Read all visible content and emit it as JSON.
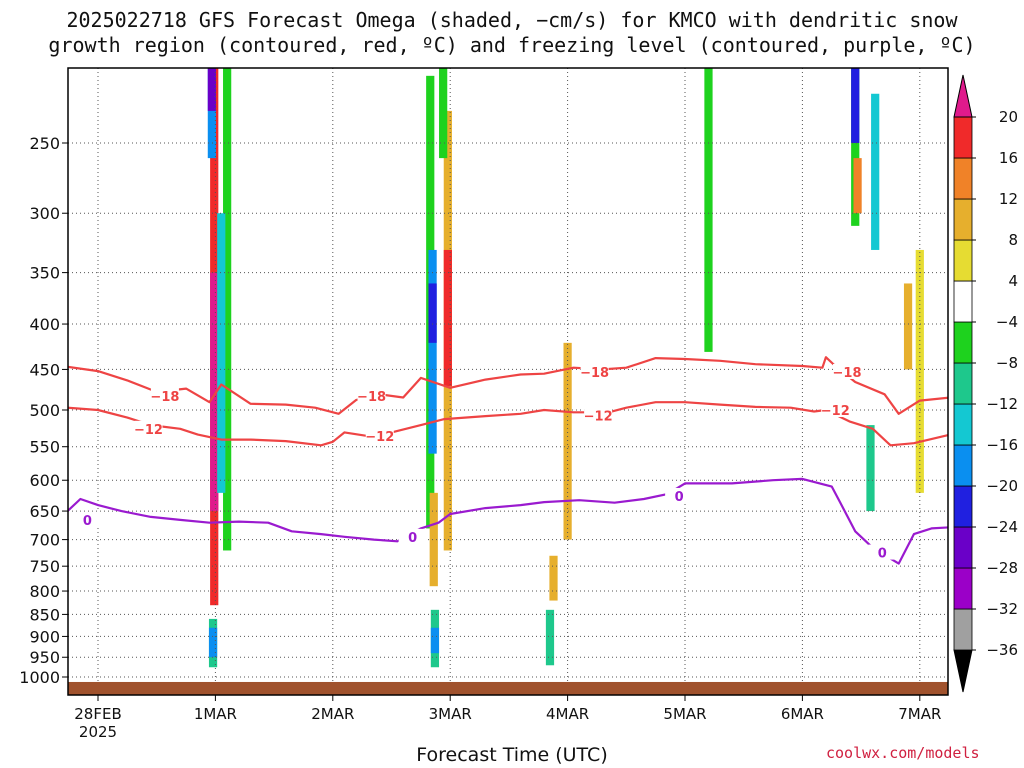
{
  "title_line1": "2025022718 GFS Forecast Omega (shaded, −cm/s) for KMCO with dendritic snow",
  "title_line2": "growth region (contoured, red, ºC) and freezing level (contoured, purple, ºC)",
  "credit": "coolwx.com/models",
  "chart_data": {
    "type": "heatmap",
    "title": "2025022718 GFS Forecast Omega (shaded, −cm/s) for KMCO with dendritic snow growth region (contoured, red, ºC) and freezing level (contoured, purple, ºC)",
    "xlabel": "Forecast Time (UTC)",
    "ylabel": "",
    "x_ticks": [
      {
        "label": "28FEB",
        "sub": "2025",
        "day": 0
      },
      {
        "label": "1MAR",
        "sub": "",
        "day": 1
      },
      {
        "label": "2MAR",
        "sub": "",
        "day": 2
      },
      {
        "label": "3MAR",
        "sub": "",
        "day": 3
      },
      {
        "label": "4MAR",
        "sub": "",
        "day": 4
      },
      {
        "label": "5MAR",
        "sub": "",
        "day": 5
      },
      {
        "label": "6MAR",
        "sub": "",
        "day": 6
      },
      {
        "label": "7MAR",
        "sub": "",
        "day": 7
      }
    ],
    "x_range_days": [
      -0.26,
      7.26
    ],
    "y_axis": "pressure (hPa), reversed",
    "y_ticks": [
      250,
      300,
      350,
      400,
      450,
      500,
      550,
      600,
      650,
      700,
      750,
      800,
      850,
      900,
      950,
      1000
    ],
    "y_range_hpa": [
      200,
      1013
    ],
    "grid": true,
    "colorbar": {
      "levels": [
        -36,
        -32,
        -28,
        -24,
        -20,
        -16,
        -12,
        -8,
        -4,
        4,
        8,
        12,
        16,
        20
      ],
      "labels": [
        "20",
        "16",
        "12",
        "8",
        "4",
        "−4",
        "−8",
        "−12",
        "−16",
        "−20",
        "−24",
        "−28",
        "−32",
        "−36"
      ],
      "colors_bottom_to_top": [
        "#000000",
        "#a0a0a0",
        "#9b00c8",
        "#6a00c8",
        "#2020e0",
        "#0a8ff0",
        "#14c8d2",
        "#1ec88c",
        "#1ed21e",
        "#ffffff",
        "#e6dc32",
        "#e6af2d",
        "#f08228",
        "#f02a2a",
        "#e01a8c"
      ],
      "position": "right"
    },
    "shading_cells": [
      {
        "day": 0.99,
        "p1": 200,
        "p2": 830,
        "value": 17
      },
      {
        "day": 0.99,
        "p1": 350,
        "p2": 650,
        "value": 21
      },
      {
        "day": 1.1,
        "p1": 200,
        "p2": 720,
        "value": -8
      },
      {
        "day": 1.05,
        "p1": 300,
        "p2": 620,
        "value": -14
      },
      {
        "day": 0.97,
        "p1": 200,
        "p2": 260,
        "value": -20
      },
      {
        "day": 0.97,
        "p1": 200,
        "p2": 230,
        "value": -26
      },
      {
        "day": 0.98,
        "p1": 860,
        "p2": 975,
        "value": -10
      },
      {
        "day": 0.98,
        "p1": 880,
        "p2": 950,
        "value": -18
      },
      {
        "day": 2.83,
        "p1": 210,
        "p2": 680,
        "value": -7
      },
      {
        "day": 2.85,
        "p1": 330,
        "p2": 560,
        "value": -18
      },
      {
        "day": 2.85,
        "p1": 360,
        "p2": 420,
        "value": -22
      },
      {
        "day": 2.98,
        "p1": 230,
        "p2": 720,
        "value": 11
      },
      {
        "day": 2.98,
        "p1": 330,
        "p2": 470,
        "value": 17
      },
      {
        "day": 2.94,
        "p1": 200,
        "p2": 260,
        "value": -6
      },
      {
        "day": 2.86,
        "p1": 620,
        "p2": 790,
        "value": 8
      },
      {
        "day": 2.87,
        "p1": 840,
        "p2": 975,
        "value": -10
      },
      {
        "day": 2.87,
        "p1": 880,
        "p2": 940,
        "value": -18
      },
      {
        "day": 4.0,
        "p1": 420,
        "p2": 700,
        "value": 9
      },
      {
        "day": 3.88,
        "p1": 730,
        "p2": 820,
        "value": 10
      },
      {
        "day": 3.85,
        "p1": 840,
        "p2": 970,
        "value": -12
      },
      {
        "day": 5.2,
        "p1": 200,
        "p2": 430,
        "value": -8
      },
      {
        "day": 6.45,
        "p1": 200,
        "p2": 310,
        "value": -8
      },
      {
        "day": 6.45,
        "p1": 200,
        "p2": 250,
        "value": -22
      },
      {
        "day": 6.47,
        "p1": 260,
        "p2": 300,
        "value": 12
      },
      {
        "day": 6.62,
        "p1": 220,
        "p2": 330,
        "value": -14
      },
      {
        "day": 6.58,
        "p1": 520,
        "p2": 650,
        "value": -12
      },
      {
        "day": 7.0,
        "p1": 330,
        "p2": 620,
        "value": 5
      },
      {
        "day": 6.9,
        "p1": 360,
        "p2": 450,
        "value": 9
      }
    ],
    "contours": [
      {
        "name": "-18",
        "color": "#ee4444",
        "labels": [
          {
            "day": 0.57,
            "hpa": 482,
            "text": "−18"
          },
          {
            "day": 2.33,
            "hpa": 482,
            "text": "−18"
          },
          {
            "day": 4.23,
            "hpa": 453,
            "text": "−18"
          },
          {
            "day": 6.38,
            "hpa": 453,
            "text": "−18"
          }
        ],
        "points": [
          [
            -0.26,
            447
          ],
          [
            0,
            452
          ],
          [
            0.25,
            463
          ],
          [
            0.5,
            477
          ],
          [
            0.75,
            473
          ],
          [
            0.95,
            490
          ],
          [
            1.05,
            468
          ],
          [
            1.3,
            492
          ],
          [
            1.6,
            493
          ],
          [
            1.85,
            497
          ],
          [
            2.05,
            505
          ],
          [
            2.2,
            487
          ],
          [
            2.4,
            480
          ],
          [
            2.6,
            484
          ],
          [
            2.75,
            460
          ],
          [
            3.0,
            472
          ],
          [
            3.3,
            462
          ],
          [
            3.6,
            456
          ],
          [
            3.8,
            455
          ],
          [
            4.05,
            448
          ],
          [
            4.3,
            450
          ],
          [
            4.5,
            448
          ],
          [
            4.75,
            437
          ],
          [
            5.0,
            438
          ],
          [
            5.3,
            440
          ],
          [
            5.6,
            444
          ],
          [
            6.0,
            446
          ],
          [
            6.17,
            448
          ],
          [
            6.2,
            436
          ],
          [
            6.28,
            446
          ],
          [
            6.45,
            465
          ],
          [
            6.7,
            480
          ],
          [
            6.82,
            505
          ],
          [
            7.0,
            488
          ],
          [
            7.26,
            484
          ]
        ]
      },
      {
        "name": "-12",
        "color": "#ee4444",
        "labels": [
          {
            "day": 0.43,
            "hpa": 525,
            "text": "−12"
          },
          {
            "day": 2.4,
            "hpa": 535,
            "text": "−12"
          },
          {
            "day": 4.26,
            "hpa": 507,
            "text": "−12"
          },
          {
            "day": 6.28,
            "hpa": 500,
            "text": "−12"
          }
        ],
        "points": [
          [
            -0.26,
            497
          ],
          [
            0,
            500
          ],
          [
            0.25,
            510
          ],
          [
            0.45,
            520
          ],
          [
            0.7,
            525
          ],
          [
            0.85,
            533
          ],
          [
            1.05,
            540
          ],
          [
            1.3,
            540
          ],
          [
            1.6,
            542
          ],
          [
            1.9,
            548
          ],
          [
            2.0,
            543
          ],
          [
            2.1,
            530
          ],
          [
            2.3,
            535
          ],
          [
            2.5,
            530
          ],
          [
            2.75,
            520
          ],
          [
            2.95,
            512
          ],
          [
            3.3,
            508
          ],
          [
            3.6,
            505
          ],
          [
            3.8,
            500
          ],
          [
            4.05,
            503
          ],
          [
            4.35,
            503
          ],
          [
            4.5,
            497
          ],
          [
            4.75,
            490
          ],
          [
            5.0,
            490
          ],
          [
            5.3,
            493
          ],
          [
            5.6,
            496
          ],
          [
            5.9,
            497
          ],
          [
            6.1,
            502
          ],
          [
            6.2,
            500
          ],
          [
            6.4,
            515
          ],
          [
            6.6,
            525
          ],
          [
            6.75,
            548
          ],
          [
            6.95,
            545
          ],
          [
            7.26,
            533
          ]
        ]
      },
      {
        "name": "0",
        "color": "#9a1acf",
        "labels": [
          {
            "day": -0.09,
            "hpa": 665,
            "text": "0"
          },
          {
            "day": 2.68,
            "hpa": 695,
            "text": "0"
          },
          {
            "day": 4.95,
            "hpa": 625,
            "text": "0"
          },
          {
            "day": 6.68,
            "hpa": 724,
            "text": "0"
          }
        ],
        "points": [
          [
            -0.26,
            650
          ],
          [
            -0.15,
            630
          ],
          [
            0,
            640
          ],
          [
            0.2,
            650
          ],
          [
            0.45,
            660
          ],
          [
            0.7,
            665
          ],
          [
            0.95,
            670
          ],
          [
            1.2,
            668
          ],
          [
            1.45,
            670
          ],
          [
            1.65,
            685
          ],
          [
            1.9,
            690
          ],
          [
            2.1,
            695
          ],
          [
            2.35,
            700
          ],
          [
            2.55,
            703
          ],
          [
            2.75,
            680
          ],
          [
            2.9,
            670
          ],
          [
            3.0,
            655
          ],
          [
            3.3,
            645
          ],
          [
            3.6,
            640
          ],
          [
            3.8,
            635
          ],
          [
            4.1,
            632
          ],
          [
            4.4,
            636
          ],
          [
            4.65,
            630
          ],
          [
            4.85,
            622
          ],
          [
            5.0,
            605
          ],
          [
            5.4,
            605
          ],
          [
            5.75,
            600
          ],
          [
            6.0,
            598
          ],
          [
            6.25,
            610
          ],
          [
            6.32,
            635
          ],
          [
            6.45,
            685
          ],
          [
            6.6,
            715
          ],
          [
            6.82,
            745
          ],
          [
            6.95,
            690
          ],
          [
            7.1,
            680
          ],
          [
            7.26,
            678
          ]
        ]
      }
    ],
    "ground": {
      "hpa_top": 1013
    }
  }
}
